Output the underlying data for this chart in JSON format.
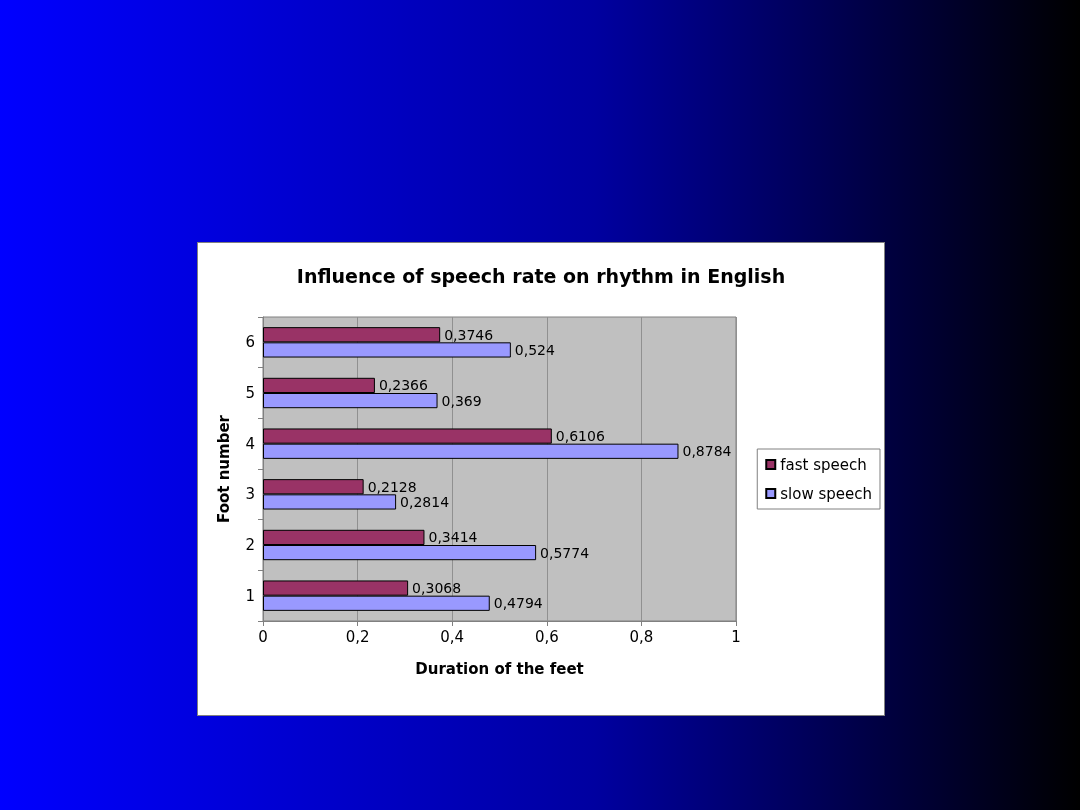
{
  "chart_data": {
    "type": "bar",
    "orientation": "horizontal",
    "title": "Influence of speech rate on rhythm in English",
    "xlabel": "Duration of the feet",
    "ylabel": "Foot number",
    "categories": [
      "6",
      "5",
      "4",
      "3",
      "2",
      "1"
    ],
    "series": [
      {
        "name": "fast speech",
        "color": "#993366",
        "values": [
          0.3746,
          0.2366,
          0.6106,
          0.2128,
          0.3414,
          0.3068
        ],
        "value_labels": [
          "0,3746",
          "0,2366",
          "0,6106",
          "0,2128",
          "0,3414",
          "0,3068"
        ]
      },
      {
        "name": "slow speech",
        "color": "#9999ff",
        "values": [
          0.524,
          0.369,
          0.8784,
          0.2814,
          0.5774,
          0.4794
        ],
        "value_labels": [
          "0,524",
          "0,369",
          "0,8784",
          "0,2814",
          "0,5774",
          "0,4794"
        ]
      }
    ],
    "xlim": [
      0,
      1
    ],
    "xticks": [
      0,
      {
        "value": 0.2,
        "label": "0,2"
      },
      {
        "value": 0.4,
        "label": "0,4"
      },
      {
        "value": 0.6,
        "label": "0,6"
      },
      {
        "value": 0.8,
        "label": "0,8"
      },
      1
    ],
    "grid": "x",
    "legend": "right"
  }
}
